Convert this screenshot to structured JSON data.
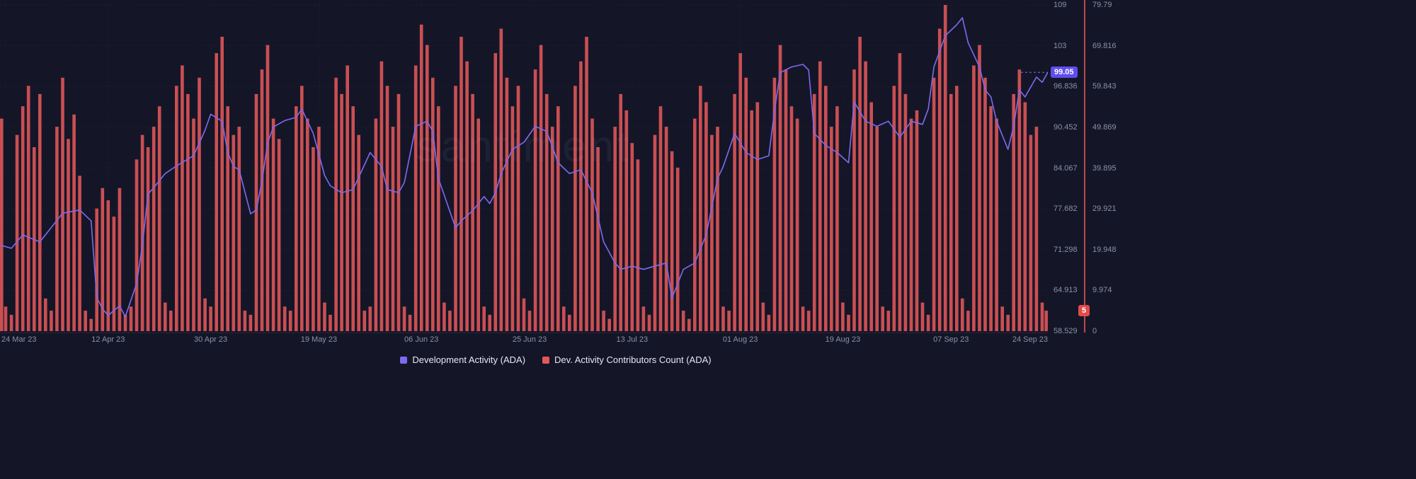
{
  "watermark": "santiment",
  "legend": {
    "items": [
      {
        "label": "Development Activity (ADA)",
        "color": "#7c6bf0"
      },
      {
        "label": "Dev. Activity Contributors Count (ADA)",
        "color": "#e45858"
      }
    ]
  },
  "chart_data": {
    "type": "mixed",
    "title": "",
    "grid": true,
    "legend_position": "bottom",
    "x_axis": {
      "start_date": "2023-03-24",
      "end_date": "2023-09-24",
      "total_days": 184,
      "tick_labels": [
        "24 Mar 23",
        "12 Apr 23",
        "30 Apr 23",
        "19 May 23",
        "06 Jun 23",
        "25 Jun 23",
        "13 Jul 23",
        "01 Aug 23",
        "19 Aug 23",
        "07 Sep 23",
        "24 Sep 23"
      ],
      "tick_day_offsets": [
        0,
        19,
        37,
        56,
        74,
        93,
        111,
        130,
        148,
        167,
        184
      ]
    },
    "left_axis": {
      "metric": "Development Activity (ADA)",
      "min": 58.529,
      "max": 109.605,
      "tick_labels": [
        "58.529",
        "64.913",
        "71.298",
        "77.682",
        "84.067",
        "90.452",
        "96.836",
        "103",
        "109"
      ],
      "badge": "99.05",
      "badge_color": "#5f4dee"
    },
    "right_axis": {
      "metric": "Dev. Activity Contributors Count (ADA)",
      "min": 0,
      "max": 79.79,
      "tick_labels": [
        "0",
        "9.974",
        "19.948",
        "29.921",
        "39.895",
        "49.869",
        "59.843",
        "69.816",
        "79.79"
      ],
      "badge": "5",
      "badge_color": "#e14b4b",
      "axis_line_color": "#b84a4a"
    },
    "series": [
      {
        "name": "Development Activity (ADA)",
        "type": "line",
        "axis": "left",
        "color": "#7c6bf0",
        "start_date": "2023-03-24",
        "last_value": 99.05,
        "day_offsets": [
          0,
          2,
          4,
          7,
          11,
          14,
          16,
          17,
          18,
          19,
          21,
          22,
          24,
          25,
          26,
          27,
          29,
          31,
          34,
          36,
          37,
          39,
          40,
          41,
          42,
          44,
          45,
          46,
          47,
          48,
          50,
          52,
          53,
          55,
          57,
          58,
          60,
          62,
          65,
          67,
          68,
          70,
          71,
          73,
          75,
          76,
          77,
          80,
          81,
          83,
          85,
          86,
          87,
          88,
          90,
          92,
          94,
          96,
          98,
          100,
          102,
          104,
          106,
          108,
          109,
          111,
          113,
          115,
          117,
          118,
          120,
          122,
          124,
          126,
          127,
          129,
          131,
          133,
          135,
          136,
          137,
          139,
          141,
          142,
          143,
          145,
          147,
          149,
          150,
          152,
          154,
          156,
          158,
          160,
          162,
          163,
          164,
          166,
          168,
          169,
          170,
          172,
          173,
          174,
          175,
          177,
          178,
          179,
          180,
          182,
          183,
          184
        ],
        "values": [
          72.0,
          71.5,
          73.6,
          72.5,
          77.0,
          77.5,
          75.8,
          63.8,
          62.0,
          61.0,
          62.5,
          60.8,
          66.0,
          72.0,
          80.0,
          81.0,
          83.2,
          84.4,
          86.0,
          90.0,
          92.5,
          91.4,
          86.5,
          84.3,
          83.8,
          76.9,
          77.5,
          82.0,
          88.0,
          90.5,
          91.5,
          92.0,
          93.3,
          89.5,
          82.9,
          81.3,
          80.2,
          80.7,
          86.5,
          84.3,
          80.7,
          80.2,
          81.8,
          90.6,
          91.4,
          89.8,
          82.4,
          74.7,
          75.8,
          77.4,
          79.6,
          78.5,
          80.2,
          83.2,
          87.0,
          88.1,
          90.6,
          89.8,
          84.9,
          83.2,
          83.8,
          80.2,
          72.5,
          69.2,
          68.2,
          68.7,
          68.2,
          68.7,
          69.2,
          63.7,
          68.2,
          69.2,
          73.6,
          82.4,
          84.3,
          89.5,
          86.5,
          85.4,
          86.0,
          93.0,
          99.0,
          99.9,
          100.3,
          99.4,
          89.5,
          87.6,
          86.5,
          84.9,
          94.4,
          91.4,
          90.6,
          91.4,
          88.9,
          91.4,
          90.9,
          93.3,
          99.9,
          104.8,
          106.5,
          107.6,
          103.7,
          99.9,
          96.3,
          95.2,
          91.4,
          87.0,
          90.6,
          96.3,
          95.2,
          98.3,
          97.5,
          99.05
        ]
      },
      {
        "name": "Dev. Activity Contributors Count (ADA)",
        "type": "bar",
        "axis": "right",
        "color": "#e45858",
        "start_date": "2023-03-24",
        "last_value": 5,
        "daily_values": [
          52,
          6,
          4,
          48,
          55,
          60,
          45,
          58,
          8,
          5,
          50,
          62,
          47,
          53,
          38,
          5,
          3,
          30,
          35,
          32,
          28,
          35,
          4,
          6,
          42,
          48,
          45,
          50,
          55,
          7,
          5,
          60,
          65,
          58,
          52,
          62,
          8,
          6,
          68,
          72,
          55,
          48,
          50,
          5,
          4,
          58,
          64,
          70,
          52,
          47,
          6,
          5,
          55,
          60,
          52,
          45,
          50,
          7,
          4,
          62,
          58,
          65,
          55,
          48,
          5,
          6,
          52,
          66,
          60,
          50,
          58,
          6,
          4,
          65,
          75,
          70,
          62,
          55,
          7,
          5,
          60,
          72,
          66,
          58,
          52,
          6,
          4,
          68,
          74,
          62,
          55,
          60,
          8,
          5,
          64,
          70,
          58,
          50,
          55,
          6,
          4,
          60,
          66,
          72,
          52,
          45,
          5,
          3,
          50,
          58,
          54,
          46,
          42,
          6,
          4,
          48,
          55,
          50,
          44,
          40,
          5,
          3,
          52,
          60,
          56,
          48,
          50,
          6,
          5,
          58,
          68,
          62,
          54,
          56,
          7,
          4,
          62,
          70,
          64,
          55,
          52,
          6,
          5,
          58,
          66,
          60,
          50,
          55,
          7,
          4,
          64,
          72,
          66,
          56,
          50,
          6,
          5,
          60,
          68,
          58,
          52,
          54,
          7,
          4,
          62,
          74,
          79.79,
          58,
          60,
          8,
          5,
          65,
          70,
          62,
          55,
          52,
          6,
          4,
          58,
          64,
          56,
          48,
          50,
          7,
          5
        ]
      }
    ]
  }
}
